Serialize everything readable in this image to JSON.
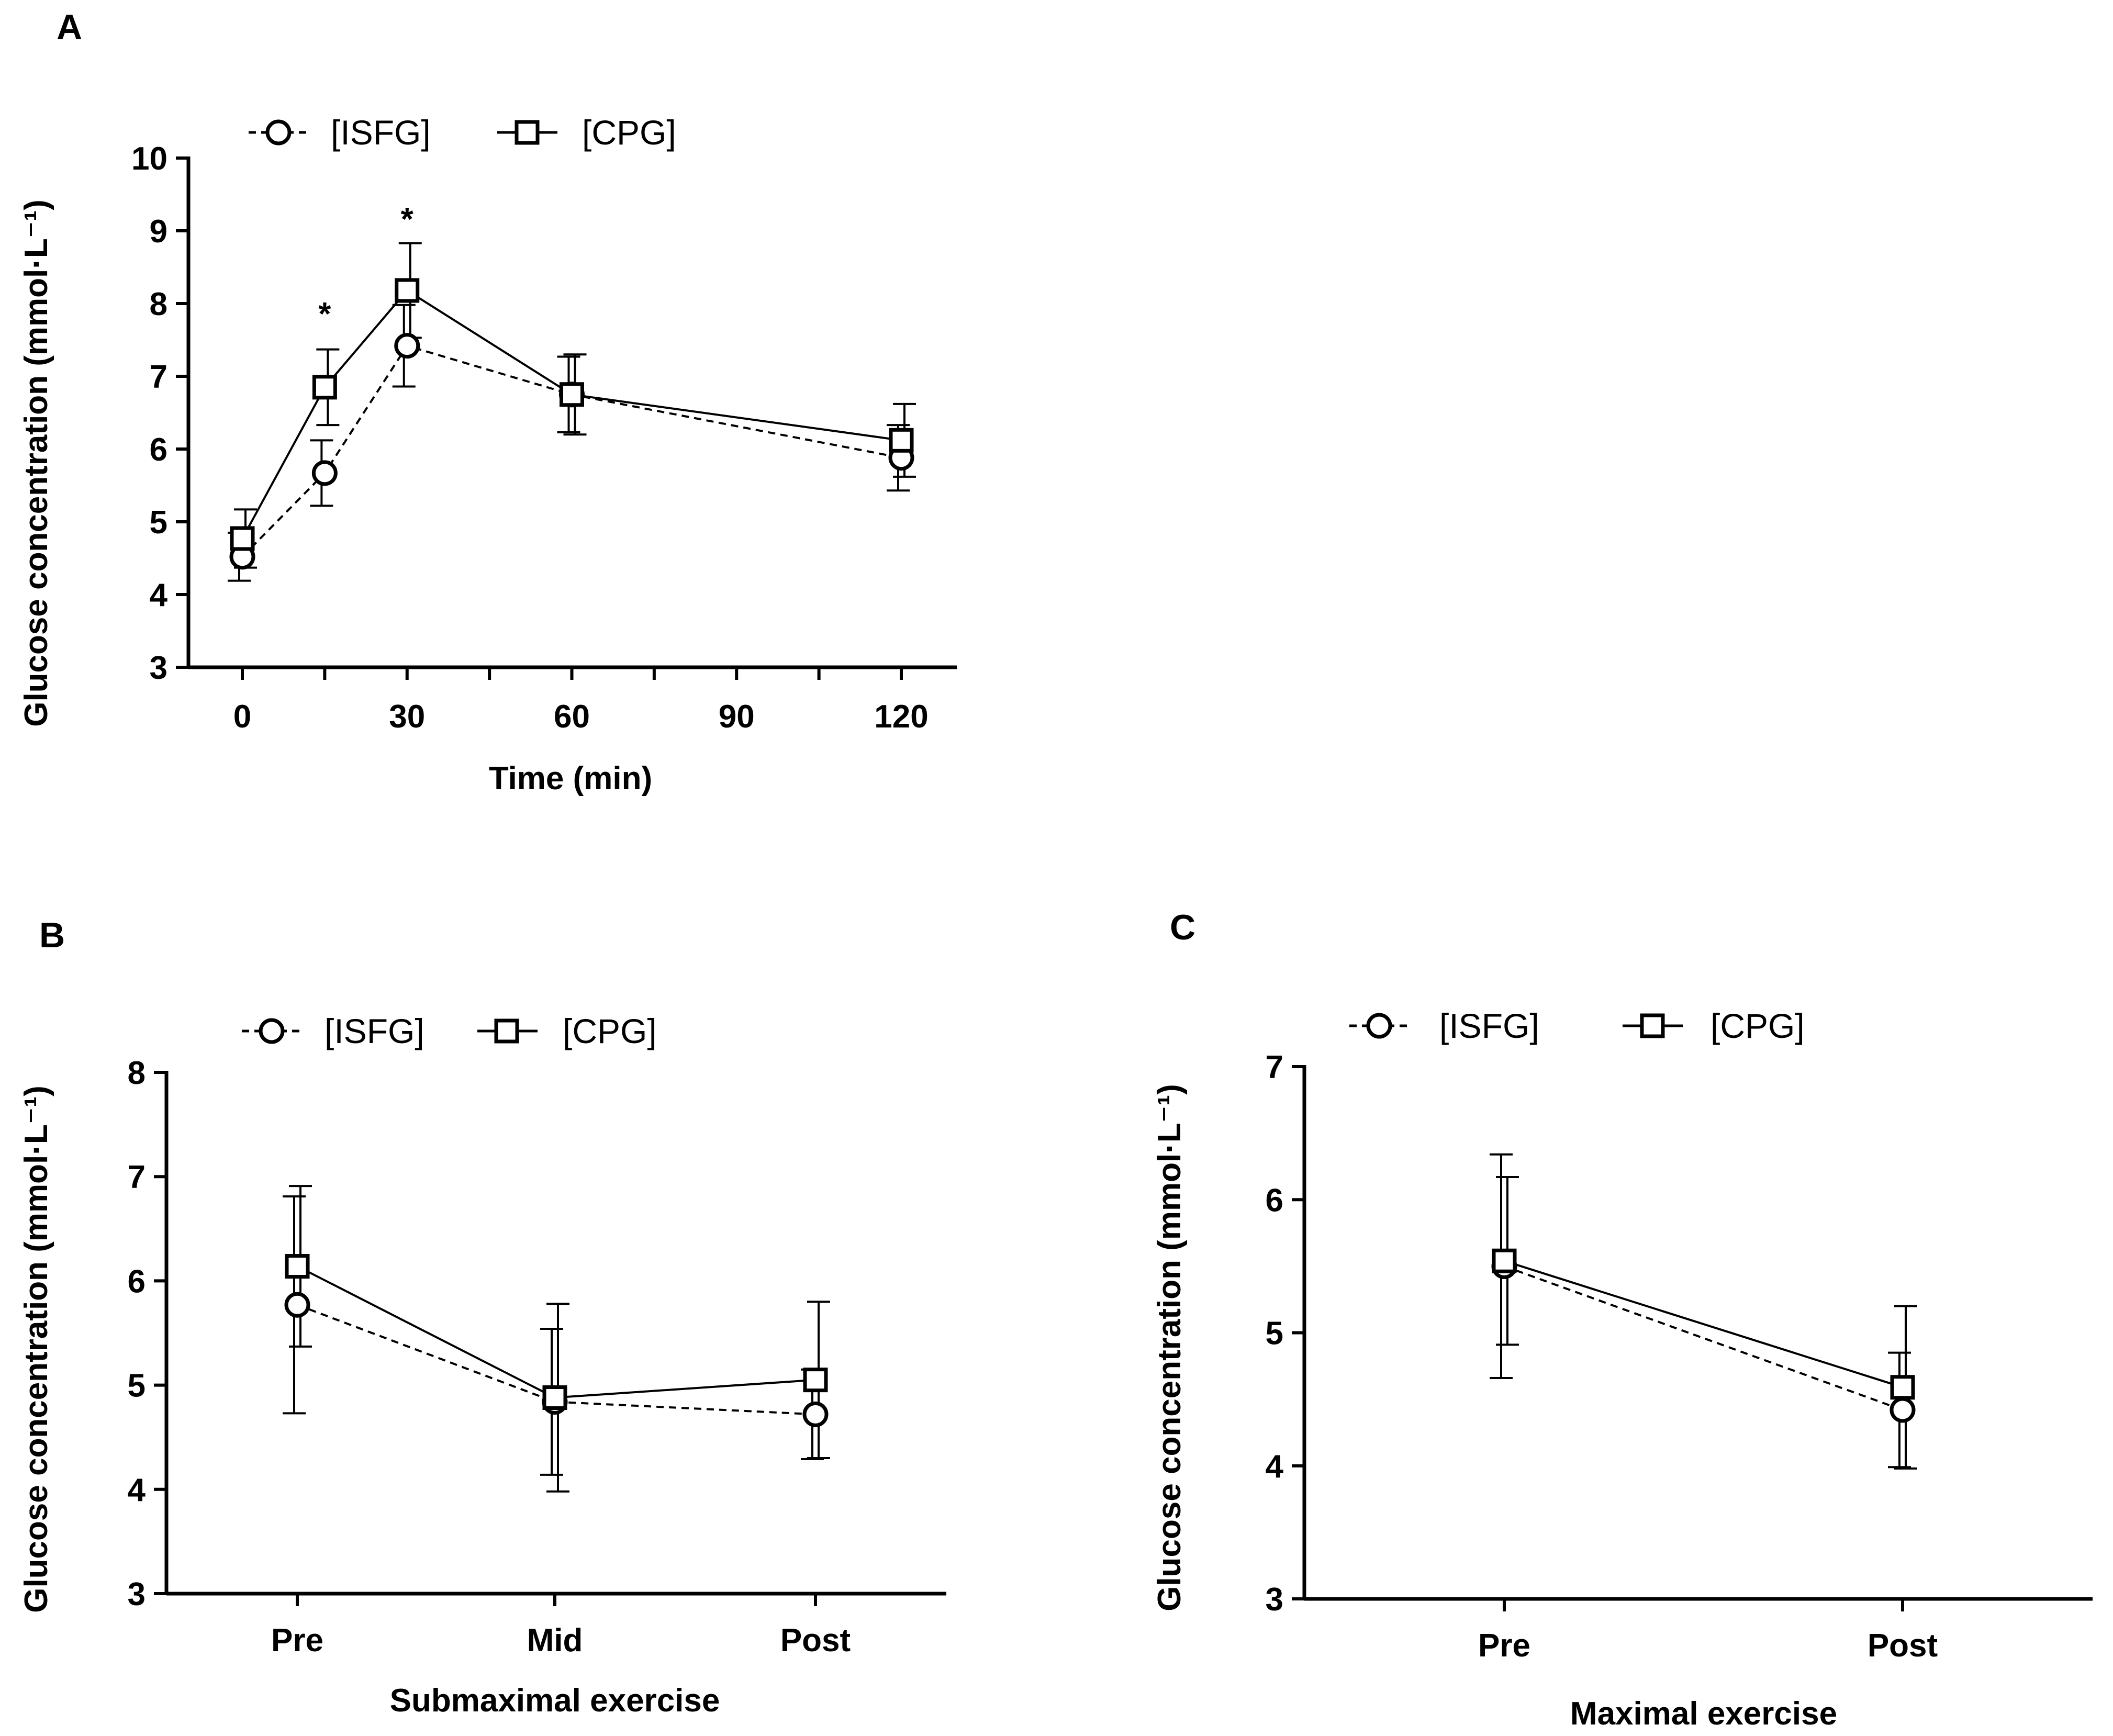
{
  "legend": {
    "isfg": "[ISFG]",
    "cpg": "[CPG]"
  },
  "chart_data": [
    {
      "panel": "A",
      "type": "line",
      "xlabel": "Time (min)",
      "ylabel": "Glucose concentration (mmol·L⁻¹)",
      "ylim": [
        3,
        10
      ],
      "xlim": [
        -10,
        128
      ],
      "yticks": [
        3,
        4,
        5,
        6,
        7,
        8,
        9,
        10
      ],
      "xticks": [
        0,
        15,
        30,
        45,
        60,
        75,
        90,
        105,
        120
      ],
      "xtick_labels": [
        "0",
        "",
        "30",
        "",
        "60",
        "",
        "90",
        "",
        "120"
      ],
      "series": [
        {
          "name": "[ISFG]",
          "marker": "circle",
          "dash": true,
          "x": [
            0,
            15,
            30,
            60,
            120
          ],
          "values": [
            4.52,
            5.67,
            7.42,
            6.75,
            5.88
          ],
          "errors": [
            0.33,
            0.45,
            0.56,
            0.52,
            0.45
          ]
        },
        {
          "name": "[CPG]",
          "marker": "square",
          "dash": false,
          "x": [
            0,
            15,
            30,
            60,
            120
          ],
          "values": [
            4.77,
            6.85,
            8.18,
            6.75,
            6.12
          ],
          "errors": [
            0.4,
            0.52,
            0.65,
            0.55,
            0.5
          ]
        }
      ],
      "annotations": [
        {
          "x": 15,
          "y": 7.85,
          "text": "*"
        },
        {
          "x": 30,
          "y": 9.15,
          "text": "*"
        }
      ]
    },
    {
      "panel": "B",
      "type": "line",
      "xlabel": "Submaximal exercise",
      "ylabel": "Glucose concentration (mmol·L⁻¹)",
      "ylim": [
        3,
        8
      ],
      "yticks": [
        3,
        4,
        5,
        6,
        7,
        8
      ],
      "categories": [
        "Pre",
        "Mid",
        "Post"
      ],
      "series": [
        {
          "name": "[ISFG]",
          "marker": "circle",
          "dash": true,
          "values": [
            5.77,
            4.84,
            4.72
          ],
          "errors": [
            1.04,
            0.7,
            0.43
          ]
        },
        {
          "name": "[CPG]",
          "marker": "square",
          "dash": false,
          "values": [
            6.14,
            4.88,
            5.05
          ],
          "errors": [
            0.77,
            0.9,
            0.75
          ]
        }
      ],
      "annotations": []
    },
    {
      "panel": "C",
      "type": "line",
      "xlabel": "Maximal exercise",
      "ylabel": "Glucose concentration (mmol·L⁻¹)",
      "ylim": [
        3,
        7
      ],
      "yticks": [
        3,
        4,
        5,
        6,
        7
      ],
      "categories": [
        "Pre",
        "Post"
      ],
      "series": [
        {
          "name": "[ISFG]",
          "marker": "circle",
          "dash": true,
          "values": [
            5.5,
            4.42
          ],
          "errors": [
            0.84,
            0.43
          ]
        },
        {
          "name": "[CPG]",
          "marker": "square",
          "dash": false,
          "values": [
            5.54,
            4.59
          ],
          "errors": [
            0.63,
            0.61
          ]
        }
      ],
      "annotations": []
    }
  ]
}
